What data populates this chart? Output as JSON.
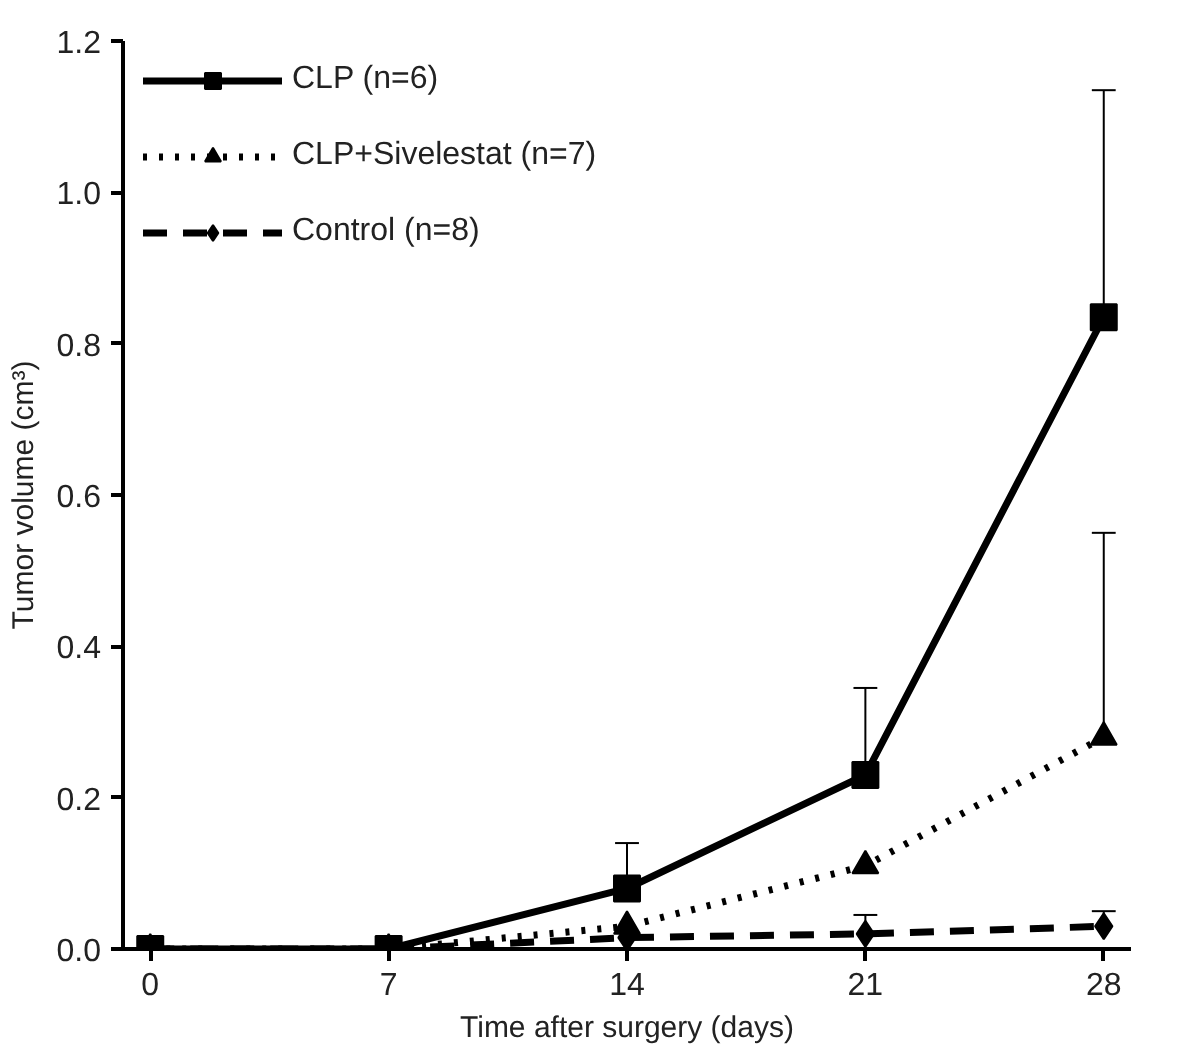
{
  "chart_data": {
    "type": "line",
    "xlabel": "Time after surgery (days)",
    "ylabel": "Tumor volume (cm³)",
    "x": [
      0,
      7,
      14,
      21,
      28
    ],
    "xlim": [
      -0.8,
      28.8
    ],
    "xticks": [
      0,
      7,
      14,
      21,
      28
    ],
    "ylim": [
      0,
      1.2
    ],
    "yticks": [
      {
        "value": 0,
        "label": "0.0"
      },
      {
        "value": 0.2,
        "label": "0.2"
      },
      {
        "value": 0.4,
        "label": "0.4"
      },
      {
        "value": 0.6,
        "label": "0.6"
      },
      {
        "value": 0.8,
        "label": "0.8"
      },
      {
        "value": 1.0,
        "label": "1.0"
      },
      {
        "value": 1.2,
        "label": "1.2"
      }
    ],
    "grid": false,
    "legend": "top left",
    "series": [
      {
        "name": "CLP (n=6)",
        "color": "#000000",
        "marker": "square",
        "line_style": "solid",
        "values": [
          0,
          0,
          0.08,
          0.23,
          0.835
        ],
        "errors": [
          null,
          null,
          [
            0.08,
            0.14
          ],
          [
            0.23,
            0.345
          ],
          [
            0.835,
            1.135
          ]
        ]
      },
      {
        "name": "CLP+Sivelestat (n=7)",
        "color": "#000000",
        "marker": "triangle",
        "line_style": "dotted",
        "values": [
          0,
          0,
          0.03,
          0.11,
          0.28
        ],
        "errors": [
          null,
          null,
          null,
          null,
          [
            0.28,
            0.55
          ]
        ]
      },
      {
        "name": "Control (n=8)",
        "color": "#000000",
        "marker": "diamond",
        "line_style": "dashed",
        "values": [
          0,
          0,
          0.015,
          0.02,
          0.03
        ],
        "errors": [
          null,
          null,
          null,
          [
            0.02,
            0.045
          ],
          [
            0.03,
            0.05
          ]
        ]
      }
    ]
  }
}
